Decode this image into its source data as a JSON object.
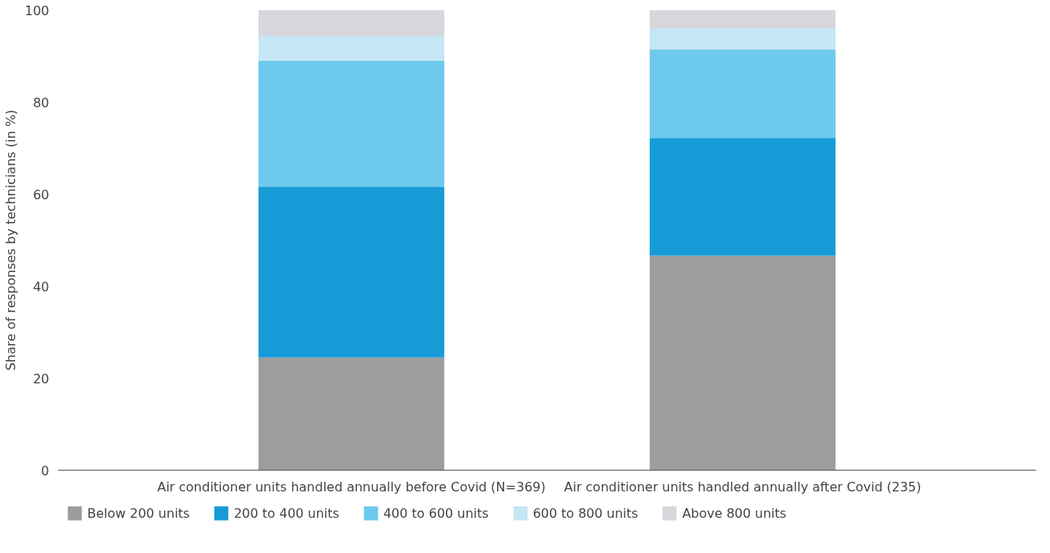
{
  "chart_data": {
    "type": "bar",
    "stacked": true,
    "ylabel": "Share of responses by technicians (in %)",
    "categories": [
      "Air conditioner units handled annually before Covid (N=369)",
      "Air conditioner units handled annually after Covid (235)"
    ],
    "series": [
      {
        "name": "Below 200 units",
        "color": "#9d9d9c",
        "values": [
          24.5,
          46.6
        ]
      },
      {
        "name": "200 to 400 units",
        "color": "#179bd7",
        "values": [
          37.1,
          25.6
        ]
      },
      {
        "name": "400 to 600 units",
        "color": "#6dcaec",
        "values": [
          27.4,
          19.3
        ]
      },
      {
        "name": "600 to 800 units",
        "color": "#c5e6f5",
        "values": [
          5.4,
          4.5
        ]
      },
      {
        "name": "Above 800 units",
        "color": "#d6d6dc",
        "values": [
          5.6,
          4.0
        ]
      }
    ],
    "ylim": [
      0,
      100
    ],
    "yticks": [
      0,
      20,
      40,
      60,
      80,
      100
    ],
    "grid": false,
    "legend": "bottom"
  }
}
